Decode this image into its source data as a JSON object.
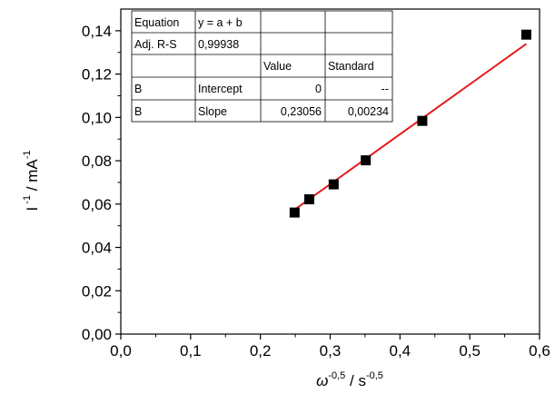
{
  "chart_data": {
    "type": "scatter",
    "title": "",
    "xlabel": {
      "symbol": "ω",
      "sup": "-0,5",
      "rest": " / s",
      "unit_sup": "-0,5"
    },
    "ylabel": {
      "base": "I",
      "sup": " -1",
      "rest": " / mA",
      "unit_sup": "-1"
    },
    "xlim": [
      0.0,
      0.6
    ],
    "ylim": [
      0.0,
      0.15
    ],
    "xticks": [
      "0,0",
      "0,1",
      "0,2",
      "0,3",
      "0,4",
      "0,5",
      "0,6"
    ],
    "yticks": [
      "0,00",
      "0,02",
      "0,04",
      "0,06",
      "0,08",
      "0,10",
      "0,12",
      "0,14"
    ],
    "points": [
      {
        "x": 0.249,
        "y": 0.0561
      },
      {
        "x": 0.27,
        "y": 0.0622
      },
      {
        "x": 0.305,
        "y": 0.0691
      },
      {
        "x": 0.351,
        "y": 0.0802
      },
      {
        "x": 0.432,
        "y": 0.0984
      },
      {
        "x": 0.581,
        "y": 0.1382
      }
    ],
    "fit": {
      "intercept": 0.0,
      "slope": 0.23056,
      "x_range": [
        0.249,
        0.581
      ],
      "color": "#e41a1c"
    },
    "marker_color": "#000000",
    "grid": false
  },
  "fit_table": {
    "rows": [
      [
        "Equation",
        "y = a + b",
        "",
        ""
      ],
      [
        "Adj. R-S",
        "0,99938",
        "",
        ""
      ],
      [
        "",
        "",
        "Value",
        "Standard"
      ],
      [
        "B",
        "Intercept",
        "0",
        "--"
      ],
      [
        "B",
        "Slope",
        "0,23056",
        "0,00234"
      ]
    ]
  }
}
